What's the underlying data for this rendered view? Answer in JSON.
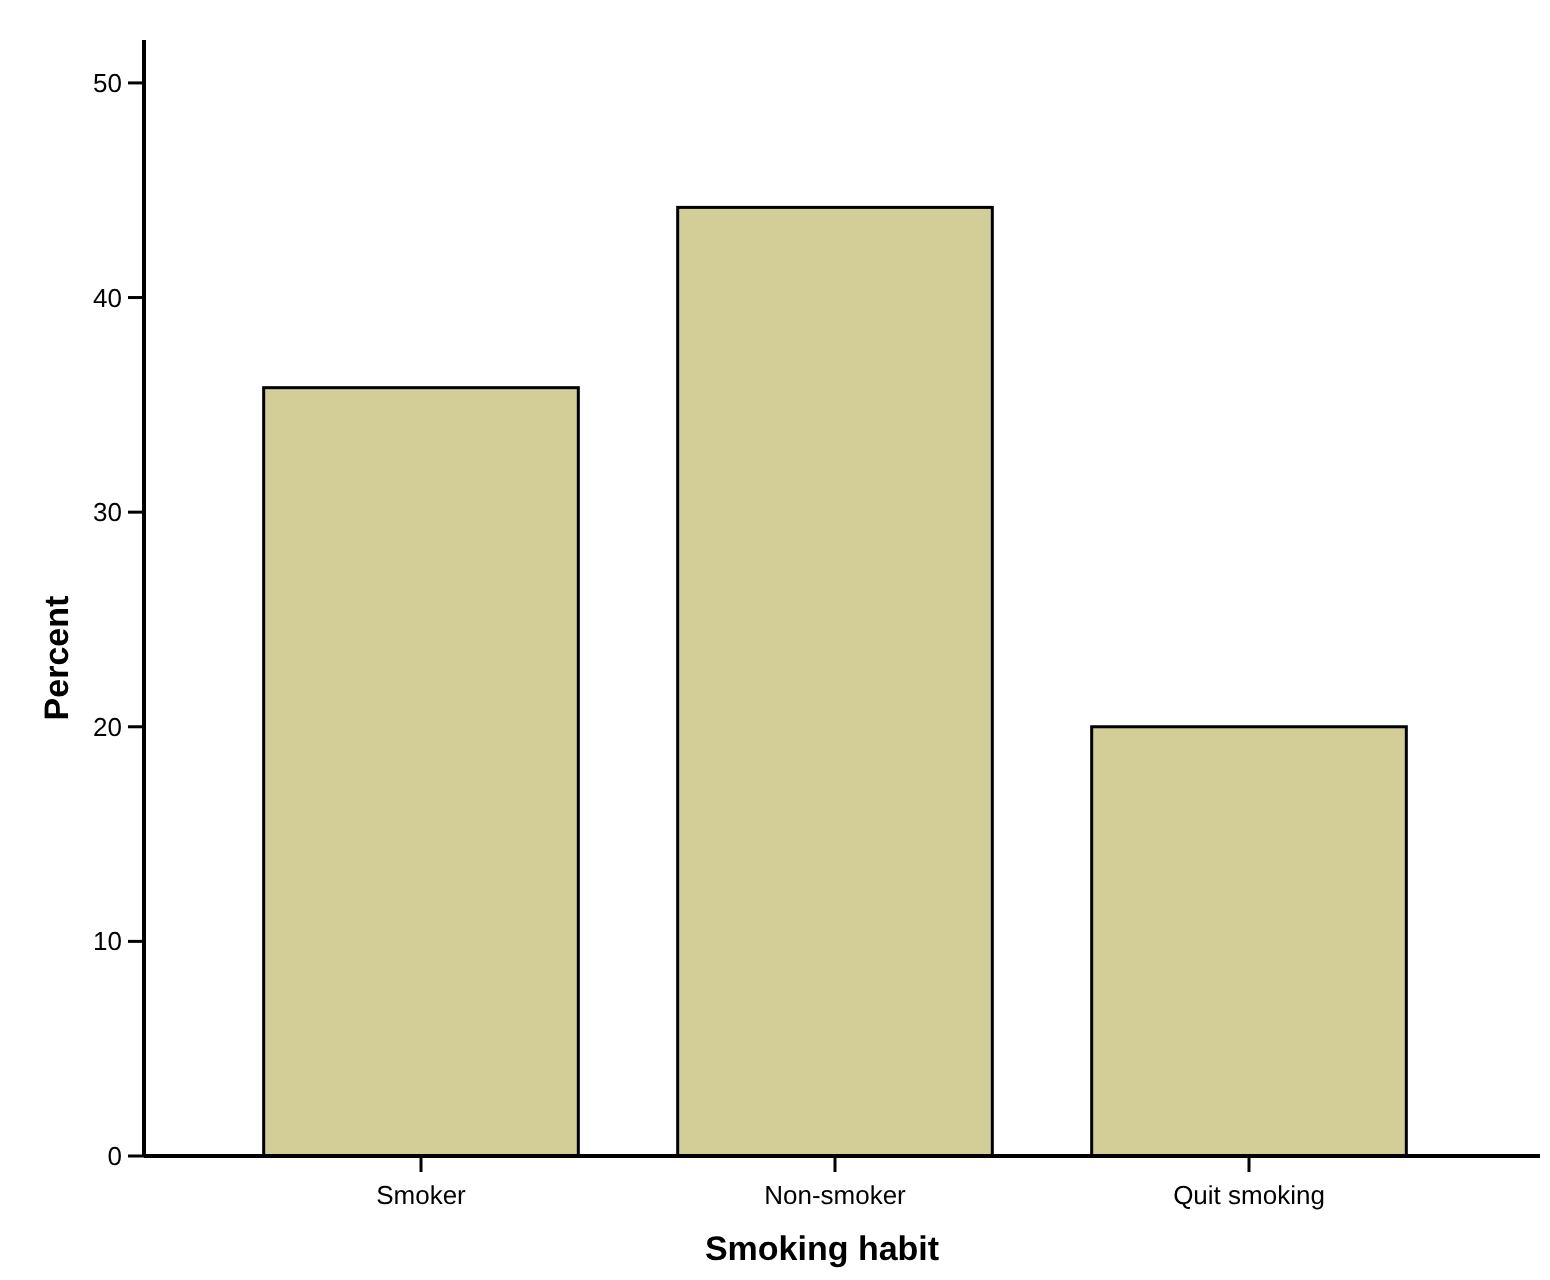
{
  "chart_data": {
    "type": "bar",
    "xlabel": "Smoking habit",
    "ylabel": "Percent",
    "categories": [
      "Smoker",
      "Non-smoker",
      "Quit smoking"
    ],
    "values": [
      35.8,
      44.2,
      20.0
    ],
    "color": "#d3cd97",
    "ylim": [
      0,
      52
    ],
    "yticks": [
      0,
      10,
      20,
      30,
      40,
      50
    ],
    "grid": false
  }
}
